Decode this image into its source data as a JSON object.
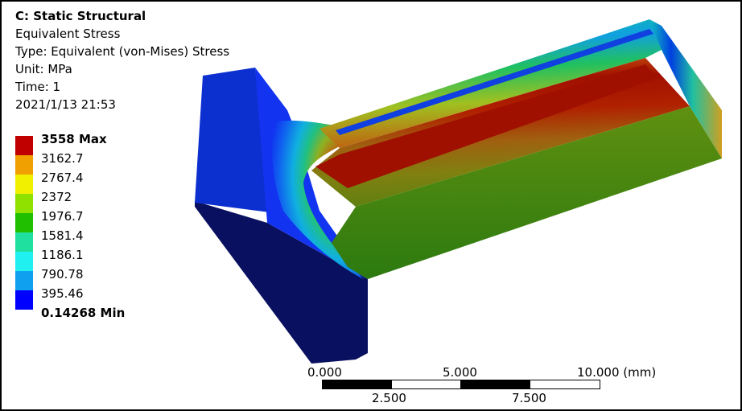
{
  "info": {
    "title": "C: Static Structural",
    "result": "Equivalent Stress",
    "type": "Type: Equivalent (von-Mises) Stress",
    "unit": "Unit: MPa",
    "time": "Time: 1",
    "timestamp": "2021/1/13 21:53"
  },
  "legend": {
    "colors": [
      "#c00000",
      "#f0a000",
      "#f0f000",
      "#90e000",
      "#20c000",
      "#20e0a0",
      "#20f0f0",
      "#10a0f0",
      "#0000ff"
    ],
    "labels": [
      "3558 Max",
      "3162.7",
      "2767.4",
      "2372",
      "1976.7",
      "1581.4",
      "1186.1",
      "790.78",
      "395.46",
      "0.14268 Min"
    ]
  },
  "scale": {
    "top_labels": [
      "0.000",
      "5.000",
      "10.000 (mm)"
    ],
    "bottom_labels": [
      "2.500",
      "7.500"
    ]
  }
}
